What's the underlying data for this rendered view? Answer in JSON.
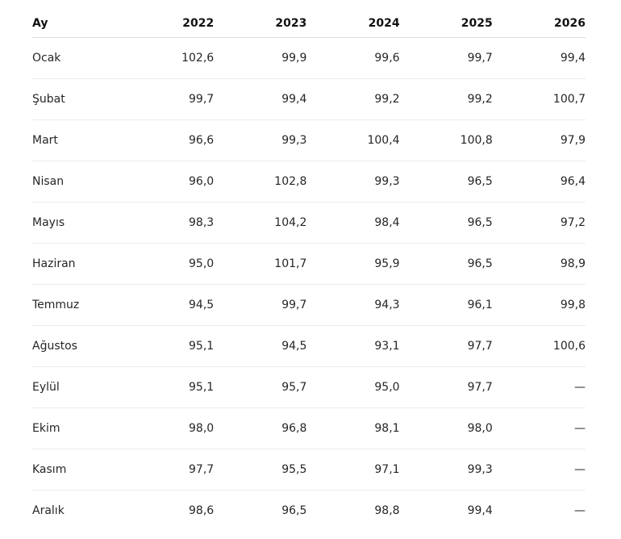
{
  "table": {
    "headers": [
      "Ay",
      "2022",
      "2023",
      "2024",
      "2025",
      "2026"
    ],
    "rows": [
      {
        "month": "Ocak",
        "values": [
          "102,6",
          "99,9",
          "99,6",
          "99,7",
          "99,4"
        ]
      },
      {
        "month": "Şubat",
        "values": [
          "99,7",
          "99,4",
          "99,2",
          "99,2",
          "100,7"
        ]
      },
      {
        "month": "Mart",
        "values": [
          "96,6",
          "99,3",
          "100,4",
          "100,8",
          "97,9"
        ]
      },
      {
        "month": "Nisan",
        "values": [
          "96,0",
          "102,8",
          "99,3",
          "96,5",
          "96,4"
        ]
      },
      {
        "month": "Mayıs",
        "values": [
          "98,3",
          "104,2",
          "98,4",
          "96,5",
          "97,2"
        ]
      },
      {
        "month": "Haziran",
        "values": [
          "95,0",
          "101,7",
          "95,9",
          "96,5",
          "98,9"
        ]
      },
      {
        "month": "Temmuz",
        "values": [
          "94,5",
          "99,7",
          "94,3",
          "96,1",
          "99,8"
        ]
      },
      {
        "month": "Ağustos",
        "values": [
          "95,1",
          "94,5",
          "93,1",
          "97,7",
          "100,6"
        ]
      },
      {
        "month": "Eylül",
        "values": [
          "95,1",
          "95,7",
          "95,0",
          "97,7",
          "—"
        ]
      },
      {
        "month": "Ekim",
        "values": [
          "98,0",
          "96,8",
          "98,1",
          "98,0",
          "—"
        ]
      },
      {
        "month": "Kasım",
        "values": [
          "97,7",
          "95,5",
          "97,1",
          "99,3",
          "—"
        ]
      },
      {
        "month": "Aralık",
        "values": [
          "98,6",
          "96,5",
          "98,8",
          "99,4",
          "—"
        ]
      }
    ]
  }
}
